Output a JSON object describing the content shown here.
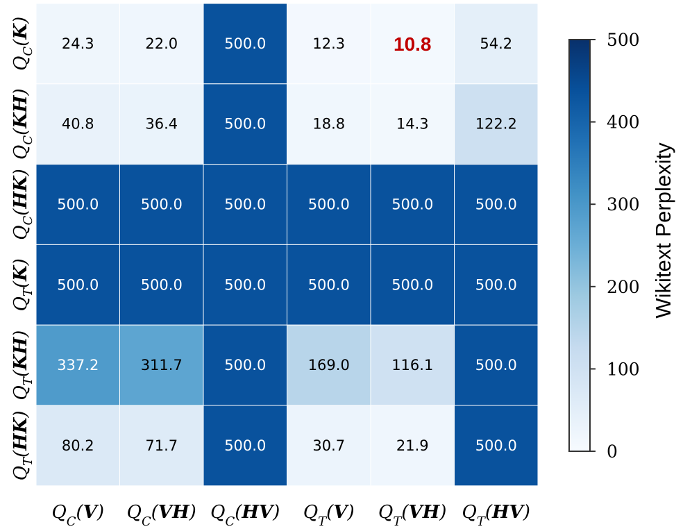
{
  "chart_data": {
    "type": "heatmap",
    "rows": [
      {
        "q": "Q",
        "sub": "C",
        "arg": "K"
      },
      {
        "q": "Q",
        "sub": "C",
        "arg": "KH"
      },
      {
        "q": "Q",
        "sub": "C",
        "arg": "HK"
      },
      {
        "q": "Q",
        "sub": "T",
        "arg": "K"
      },
      {
        "q": "Q",
        "sub": "T",
        "arg": "KH"
      },
      {
        "q": "Q",
        "sub": "T",
        "arg": "HK"
      }
    ],
    "columns": [
      {
        "q": "Q",
        "sub": "C",
        "arg": "V"
      },
      {
        "q": "Q",
        "sub": "C",
        "arg": "VH"
      },
      {
        "q": "Q",
        "sub": "C",
        "arg": "HV"
      },
      {
        "q": "Q",
        "sub": "T",
        "arg": "V"
      },
      {
        "q": "Q",
        "sub": "T",
        "arg": "VH"
      },
      {
        "q": "Q",
        "sub": "T",
        "arg": "HV"
      }
    ],
    "values": [
      [
        24.3,
        22.0,
        500.0,
        12.3,
        10.8,
        54.2
      ],
      [
        40.8,
        36.4,
        500.0,
        18.8,
        14.3,
        122.2
      ],
      [
        500.0,
        500.0,
        500.0,
        500.0,
        500.0,
        500.0
      ],
      [
        500.0,
        500.0,
        500.0,
        500.0,
        500.0,
        500.0
      ],
      [
        337.2,
        311.7,
        500.0,
        169.0,
        116.1,
        500.0
      ],
      [
        80.2,
        71.7,
        500.0,
        30.7,
        21.9,
        500.0
      ]
    ],
    "highlight": {
      "row": 0,
      "col": 4,
      "color": "#c00000"
    },
    "colorbar": {
      "label": "Wikitext Perplexity",
      "range": [
        0,
        500
      ],
      "ticks": [
        0,
        100,
        200,
        300,
        400,
        500
      ],
      "colormap": "Blues"
    }
  }
}
